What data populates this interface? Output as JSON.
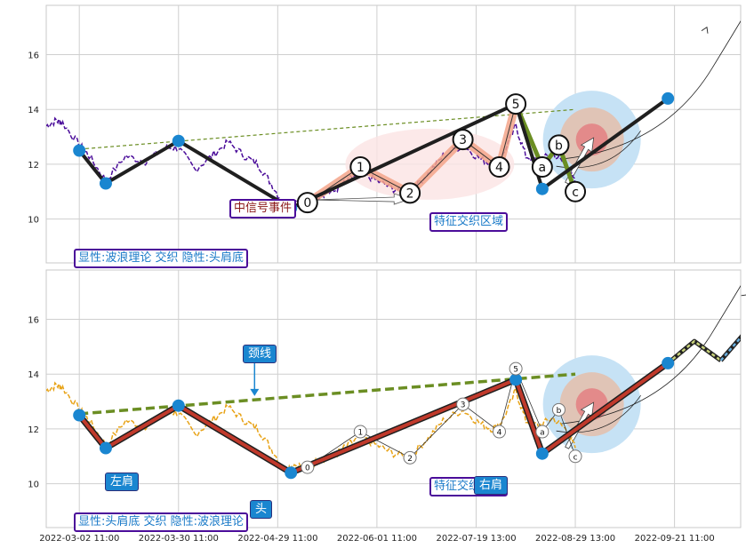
{
  "colors": {
    "price_top": "#4b0d9a",
    "price_bottom": "#e8a317",
    "zigzag_top": "#1f1f1f",
    "zigzag_bottom_outer": "#1f1f1f",
    "zigzag_bottom_inner": "#c0392b",
    "node": "#1a86d0",
    "neckline": "#6b8e23",
    "wave_fill": "#f3a58a",
    "corrective": "#6b8e23",
    "target_outer": "#c6e2f5",
    "target_mid": "#e0c4b6",
    "target_inner": "#e38a8a",
    "label_border": "#4b0d9a",
    "label_text": "#1a7ac8"
  },
  "chart_data": [
    {
      "type": "line",
      "panel": "top",
      "ylim": [
        8.4,
        17.8
      ],
      "yticks": [
        10,
        12,
        14,
        16
      ],
      "grid": true,
      "caption": "显性:波浪理论 交织 隐性:头肩底",
      "zone_label": "特征交织区域",
      "signal_label": "中信号事件",
      "head_shoulder_nodes": [
        {
          "x": 1.0,
          "y": 12.5
        },
        {
          "x": 1.8,
          "y": 11.3
        },
        {
          "x": 4.0,
          "y": 12.85
        },
        {
          "x": 7.4,
          "y": 10.4
        },
        {
          "x": 15.0,
          "y": 11.1
        },
        {
          "x": 18.8,
          "y": 14.4
        }
      ],
      "waves": [
        {
          "label": "0",
          "x": 7.9,
          "y": 10.6
        },
        {
          "label": "1",
          "x": 9.5,
          "y": 11.9
        },
        {
          "label": "2",
          "x": 11.0,
          "y": 10.95
        },
        {
          "label": "3",
          "x": 12.6,
          "y": 12.9
        },
        {
          "label": "4",
          "x": 13.7,
          "y": 11.9
        },
        {
          "label": "5",
          "x": 14.2,
          "y": 14.2
        },
        {
          "label": "a",
          "x": 15.0,
          "y": 11.9
        },
        {
          "label": "b",
          "x": 15.5,
          "y": 12.7
        },
        {
          "label": "c",
          "x": 16.0,
          "y": 11.0
        }
      ],
      "neckline": [
        {
          "x": 1.0,
          "y": 12.55
        },
        {
          "x": 16.0,
          "y": 14.0
        }
      ]
    },
    {
      "type": "line",
      "panel": "bottom",
      "ylim": [
        8.4,
        17.8
      ],
      "yticks": [
        10,
        12,
        14,
        16
      ],
      "grid": true,
      "caption": "显性:头肩底 交织 隐性:波浪理论",
      "zone_label": "特征交织区域",
      "annotations": [
        "颈线",
        "左肩",
        "头",
        "右肩"
      ],
      "head_shoulder_nodes": [
        {
          "x": 1.0,
          "y": 12.5
        },
        {
          "x": 1.8,
          "y": 11.3
        },
        {
          "x": 4.0,
          "y": 12.85
        },
        {
          "x": 7.4,
          "y": 10.4
        },
        {
          "x": 14.2,
          "y": 13.8
        },
        {
          "x": 15.0,
          "y": 11.1
        },
        {
          "x": 18.8,
          "y": 14.4
        }
      ],
      "waves": [
        {
          "label": "0",
          "x": 7.9,
          "y": 10.6
        },
        {
          "label": "1",
          "x": 9.5,
          "y": 11.9
        },
        {
          "label": "2",
          "x": 11.0,
          "y": 10.95
        },
        {
          "label": "3",
          "x": 12.6,
          "y": 12.9
        },
        {
          "label": "4",
          "x": 13.7,
          "y": 11.9
        },
        {
          "label": "5",
          "x": 14.2,
          "y": 14.2
        },
        {
          "label": "a",
          "x": 15.0,
          "y": 11.9
        },
        {
          "label": "b",
          "x": 15.5,
          "y": 12.7
        },
        {
          "label": "c",
          "x": 16.0,
          "y": 11.0
        }
      ],
      "neckline": [
        {
          "x": 1.0,
          "y": 12.55
        },
        {
          "x": 16.0,
          "y": 14.0
        }
      ],
      "x_tick_labels": [
        "2022-03-02 11:00",
        "2022-03-30 11:00",
        "2022-04-29 11:00",
        "2022-06-01 11:00",
        "2022-07-19 13:00",
        "2022-08-29 13:00",
        "2022-09-21 11:00"
      ]
    }
  ]
}
